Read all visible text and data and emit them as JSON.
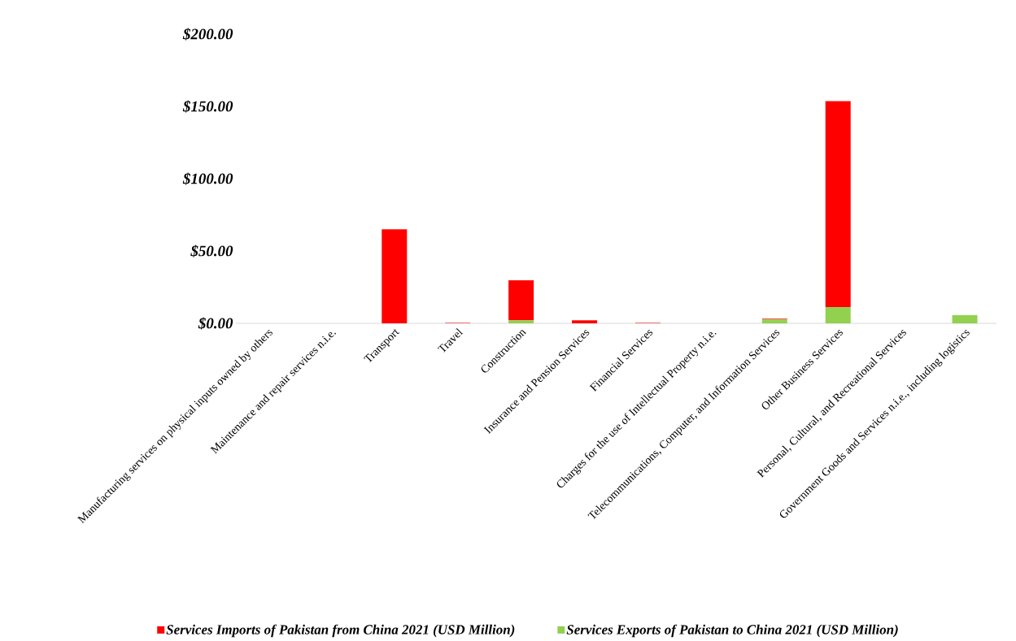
{
  "chart_data": {
    "type": "bar",
    "stacked": true,
    "legend": "bottom",
    "categories": [
      "Manufacturing services on physical inputs owned by others",
      "Maintenance and repair services n.i.e.",
      "Transport",
      "Travel",
      "Construction",
      "Insurance and Pension Services",
      "Financial Services",
      "Charges for the use of Intellectual Property n.i.e.",
      "Telecommunications, Computer, and Information Services",
      "Other Business Services",
      "Personal, Cultural, and Recreational Services",
      "Government Goods and Services n.i.e., including logistics"
    ],
    "series": [
      {
        "name": "Services Exports of Pakistan to China 2021 (USD Million)",
        "color": "#92d050",
        "values": [
          0,
          0,
          0,
          0,
          2.1,
          0,
          0,
          0,
          2.7,
          11.2,
          0,
          5.7
        ]
      },
      {
        "name": "Services Imports of Pakistan from China 2021 (USD Million)",
        "color": "#ff0000",
        "values": [
          0,
          0,
          65.0,
          0.3,
          27.7,
          2.1,
          0.3,
          0,
          0.5,
          142.4,
          0,
          0
        ]
      }
    ],
    "ylim": [
      0,
      200
    ],
    "yticks": [
      {
        "value": 0,
        "label": "$0.00"
      },
      {
        "value": 50,
        "label": "$50.00"
      },
      {
        "value": 100,
        "label": "$100.00"
      },
      {
        "value": 150,
        "label": "$150.00"
      },
      {
        "value": 200,
        "label": "$200.00"
      }
    ]
  }
}
